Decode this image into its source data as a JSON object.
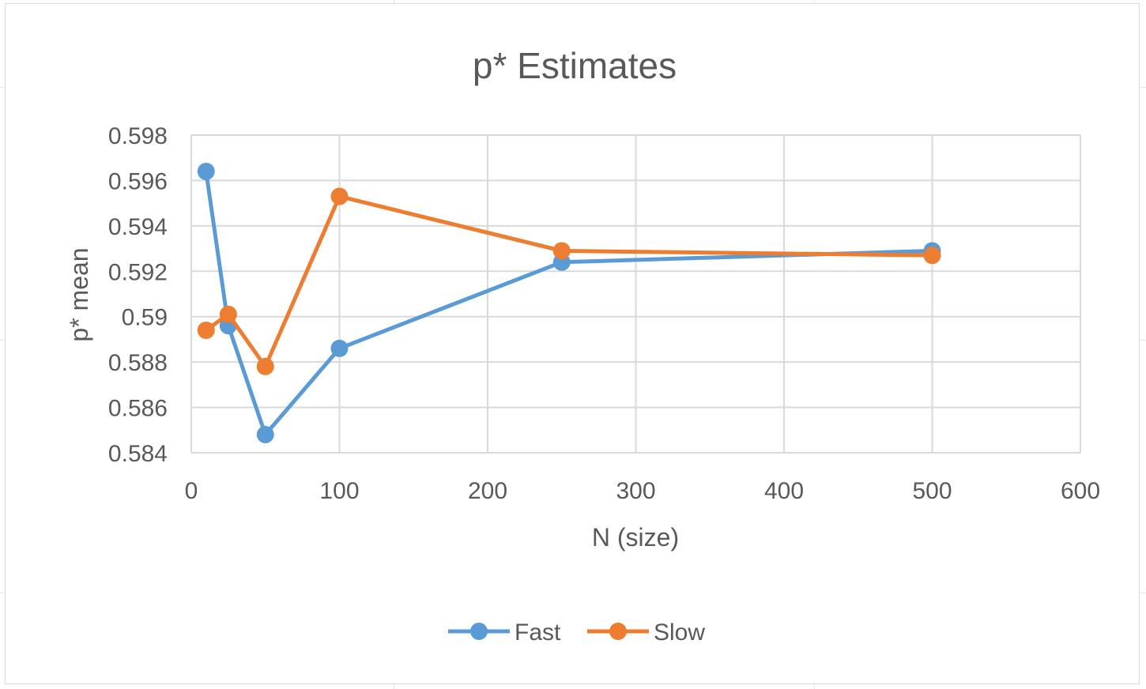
{
  "chart_data": {
    "type": "line",
    "title": "p* Estimates",
    "xlabel": "N (size)",
    "ylabel": "p* mean",
    "xlim": [
      0,
      600
    ],
    "ylim": [
      0.584,
      0.598
    ],
    "x_ticks": [
      "0",
      "100",
      "200",
      "300",
      "400",
      "500",
      "600"
    ],
    "y_ticks": [
      "0.598",
      "0.596",
      "0.594",
      "0.592",
      "0.59",
      "0.588",
      "0.586",
      "0.584"
    ],
    "grid": true,
    "legend": "bottom",
    "series": [
      {
        "name": "Fast",
        "color": "#5b9bd5",
        "x": [
          10,
          25,
          50,
          100,
          250,
          500
        ],
        "y": [
          0.5964,
          0.5896,
          0.5848,
          0.5886,
          0.5924,
          0.5929
        ]
      },
      {
        "name": "Slow",
        "color": "#ed7d31",
        "x": [
          10,
          25,
          50,
          100,
          250,
          500
        ],
        "y": [
          0.5894,
          0.5901,
          0.5878,
          0.5953,
          0.5929,
          0.5927
        ]
      }
    ]
  }
}
